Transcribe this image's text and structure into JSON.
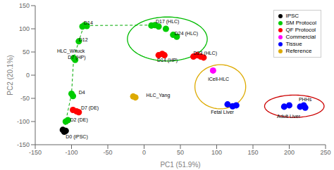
{
  "chart_data": {
    "type": "scatter",
    "xlabel": "PC1 (51.9%)",
    "ylabel": "PC2 (20.1%)",
    "xlim": [
      -150,
      250
    ],
    "ylim": [
      -150,
      150
    ],
    "xticks": [
      -150,
      -100,
      -50,
      0,
      50,
      100,
      150,
      200,
      250
    ],
    "yticks": [
      -150,
      -100,
      -50,
      0,
      50,
      100,
      150
    ],
    "grid": false,
    "legend": "upper right",
    "series": [
      {
        "type": "line",
        "line_style": "dashed",
        "color": "#00aa00",
        "values": [
          [
            -110,
            -118
          ],
          [
            -108,
            -100
          ],
          [
            -100,
            -40
          ],
          [
            -97,
            37
          ],
          [
            -90,
            73
          ],
          [
            -83,
            107
          ],
          [
            15,
            108
          ],
          [
            20,
            105
          ]
        ]
      },
      {
        "name": "IPSC",
        "color": "#000000",
        "values": [
          [
            -112,
            -118
          ],
          [
            -110,
            -122
          ],
          [
            -108,
            -120
          ]
        ]
      },
      {
        "name": "SM Protocol",
        "color": "#00cc00",
        "values": [
          [
            -108,
            -100
          ],
          [
            -105,
            -97
          ],
          [
            -100,
            -40
          ],
          [
            -98,
            -45
          ],
          [
            -97,
            37
          ],
          [
            -95,
            33
          ],
          [
            -90,
            73
          ],
          [
            -85,
            105
          ],
          [
            -82,
            108
          ],
          [
            -79,
            106
          ],
          [
            10,
            107
          ],
          [
            15,
            108
          ],
          [
            20,
            105
          ],
          [
            30,
            100
          ],
          [
            40,
            87
          ],
          [
            45,
            83
          ]
        ]
      },
      {
        "name": "QF Protocol",
        "color": "#ff0000",
        "values": [
          [
            -98,
            -75
          ],
          [
            -93,
            -78
          ],
          [
            -90,
            -80
          ],
          [
            20,
            43
          ],
          [
            25,
            46
          ],
          [
            28,
            43
          ],
          [
            68,
            40
          ],
          [
            73,
            43
          ],
          [
            78,
            40
          ],
          [
            82,
            38
          ]
        ]
      },
      {
        "name": "Commercial",
        "color": "#ff00ff",
        "values": [
          [
            95,
            10
          ]
        ]
      },
      {
        "name": "Tissue",
        "color": "#0000ff",
        "values": [
          [
            115,
            -63
          ],
          [
            122,
            -67
          ],
          [
            127,
            -65
          ],
          [
            193,
            -68
          ],
          [
            200,
            -65
          ],
          [
            215,
            -68
          ],
          [
            220,
            -65
          ],
          [
            222,
            -70
          ]
        ]
      },
      {
        "name": "Reference",
        "color": "#ddaa00",
        "values": [
          [
            -15,
            -46
          ],
          [
            -12,
            -48
          ]
        ]
      }
    ],
    "ellipses": [
      {
        "center": [
          32,
          78
        ],
        "width": 110,
        "height": 95,
        "color": "#00bb00"
      },
      {
        "center": [
          105,
          -25
        ],
        "width": 70,
        "height": 95,
        "color": "#ddaa00"
      },
      {
        "center": [
          207,
          -67
        ],
        "width": 82,
        "height": 48,
        "color": "#cc0000"
      }
    ],
    "annotations": [
      {
        "text": "D14",
        "x": -83,
        "y": 113
      },
      {
        "text": "D12",
        "x": -90,
        "y": 76
      },
      {
        "text": "HLC_Whuck",
        "x": -120,
        "y": 52
      },
      {
        "text": "D7 (HP)",
        "x": -105,
        "y": 38
      },
      {
        "text": "D4",
        "x": -90,
        "y": -37
      },
      {
        "text": "D7 (DE)",
        "x": -87,
        "y": -70
      },
      {
        "text": "D2 (DE)",
        "x": -102,
        "y": -96
      },
      {
        "text": "D0 (iPSC)",
        "x": -108,
        "y": -133
      },
      {
        "text": "D17 (HLC)",
        "x": 16,
        "y": 116
      },
      {
        "text": "D24 (HLC)",
        "x": 42,
        "y": 90
      },
      {
        "text": "D23 (HLC)",
        "x": 68,
        "y": 47
      },
      {
        "text": "D14 (HP)",
        "x": 18,
        "y": 33
      },
      {
        "text": "HLC_Yang",
        "x": 3,
        "y": -43
      },
      {
        "text": "iCell-HLC",
        "x": 88,
        "y": -8
      },
      {
        "text": "Fetal Liver",
        "x": 92,
        "y": -80
      },
      {
        "text": "Adult Liver",
        "x": 183,
        "y": -88
      },
      {
        "text": "PHHs",
        "x": 213,
        "y": -52
      }
    ]
  }
}
